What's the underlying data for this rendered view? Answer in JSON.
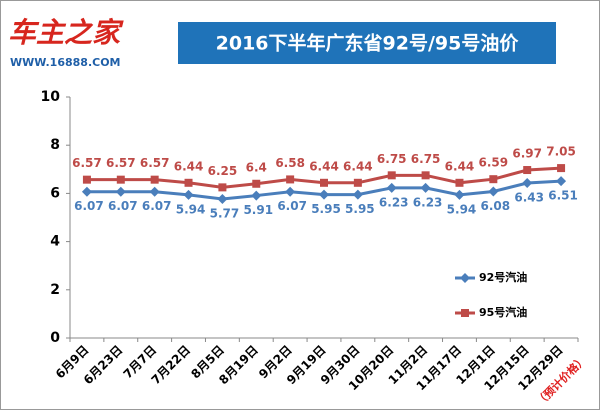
{
  "logo": {
    "brand": "车主之家",
    "url": "WWW.16888.COM"
  },
  "chart_data": {
    "type": "line",
    "title": "2016下半年广东省92号/95号油价",
    "categories": [
      "6月9日",
      "6月23日",
      "7月7日",
      "7月22日",
      "8月5日",
      "8月19日",
      "9月2日",
      "9月19日",
      "9月30日",
      "10月20日",
      "11月2日",
      "11月17日",
      "12月1日",
      "12月15日",
      "12月29日"
    ],
    "series": [
      {
        "name": "92号汽油",
        "color": "#4a7ebb",
        "marker": "diamond",
        "values": [
          6.07,
          6.07,
          6.07,
          5.94,
          5.77,
          5.91,
          6.07,
          5.95,
          5.95,
          6.23,
          6.23,
          5.94,
          6.08,
          6.43,
          6.51
        ]
      },
      {
        "name": "95号汽油",
        "color": "#be4b48",
        "marker": "square",
        "values": [
          6.57,
          6.57,
          6.57,
          6.44,
          6.25,
          6.4,
          6.58,
          6.44,
          6.44,
          6.75,
          6.75,
          6.44,
          6.59,
          6.97,
          7.05
        ]
      }
    ],
    "ylim": [
      0,
      10
    ],
    "yticks": [
      0,
      2,
      4,
      6,
      8,
      10
    ],
    "grid": false,
    "legend": "right",
    "annotation": "（预计价格）"
  }
}
